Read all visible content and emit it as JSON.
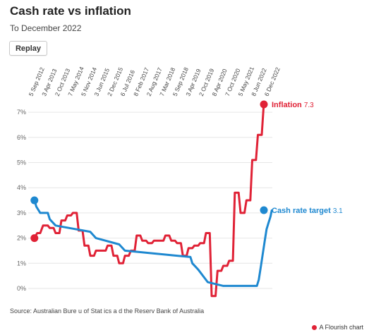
{
  "header": {
    "title": "Cash rate vs inflation",
    "subtitle": "To December 2022",
    "replay_label": "Replay"
  },
  "footer": {
    "source": "Source: Australian Bure  u of Stat  ics a  d the Reserv  Bank of Australia",
    "credit": "A Flourish chart"
  },
  "colors": {
    "inflation": "#e02236",
    "cash_rate": "#1e88d0",
    "grid": "#e6e6e6",
    "text": "#444444"
  },
  "chart_data": {
    "type": "line",
    "title": "Cash rate vs inflation",
    "subtitle": "To December 2022",
    "ylim": [
      0,
      7.5
    ],
    "y_ticks": [
      "0%",
      "1%",
      "2%",
      "3%",
      "4%",
      "5%",
      "6%",
      "7%"
    ],
    "x_range": [
      "2012-08-01",
      "2022-12-15"
    ],
    "x_ticks": [
      "5 Sep 2012",
      "3 Apr 2013",
      "2 Oct 2013",
      "7 May 2014",
      "5 Nov 2014",
      "3 Jun 2015",
      "2 Dec 2015",
      "6 Jul 2016",
      "8 Feb 2017",
      "2 Aug 2017",
      "7 Mar 2018",
      "5 Sep 2018",
      "3 Apr 2019",
      "2 Oct 2019",
      "8 Apr 2020",
      "7 Oct 2020",
      "5 May 2021",
      "8 Jun 2022",
      "6 Dec 2022"
    ],
    "grid": true,
    "series": [
      {
        "name": "Inflation",
        "end_label": "7.3",
        "points": [
          [
            "2012-09-01",
            2.0
          ],
          [
            "2012-10-15",
            2.2
          ],
          [
            "2012-12-01",
            2.2
          ],
          [
            "2013-01-15",
            2.5
          ],
          [
            "2013-04-01",
            2.5
          ],
          [
            "2013-05-01",
            2.4
          ],
          [
            "2013-07-01",
            2.4
          ],
          [
            "2013-08-01",
            2.2
          ],
          [
            "2013-10-01",
            2.2
          ],
          [
            "2013-11-01",
            2.7
          ],
          [
            "2014-01-01",
            2.7
          ],
          [
            "2014-02-01",
            2.9
          ],
          [
            "2014-04-01",
            2.9
          ],
          [
            "2014-05-01",
            3.0
          ],
          [
            "2014-07-01",
            3.0
          ],
          [
            "2014-08-01",
            2.3
          ],
          [
            "2014-10-01",
            2.3
          ],
          [
            "2014-11-01",
            1.7
          ],
          [
            "2015-01-01",
            1.7
          ],
          [
            "2015-02-01",
            1.3
          ],
          [
            "2015-04-01",
            1.3
          ],
          [
            "2015-05-01",
            1.5
          ],
          [
            "2015-07-01",
            1.5
          ],
          [
            "2015-08-01",
            1.5
          ],
          [
            "2015-10-01",
            1.5
          ],
          [
            "2015-11-01",
            1.7
          ],
          [
            "2016-01-01",
            1.7
          ],
          [
            "2016-02-01",
            1.3
          ],
          [
            "2016-04-01",
            1.3
          ],
          [
            "2016-05-01",
            1.0
          ],
          [
            "2016-07-01",
            1.0
          ],
          [
            "2016-08-01",
            1.3
          ],
          [
            "2016-10-01",
            1.3
          ],
          [
            "2016-11-01",
            1.5
          ],
          [
            "2017-01-01",
            1.5
          ],
          [
            "2017-02-01",
            2.1
          ],
          [
            "2017-04-01",
            2.1
          ],
          [
            "2017-05-01",
            1.9
          ],
          [
            "2017-07-01",
            1.9
          ],
          [
            "2017-08-01",
            1.8
          ],
          [
            "2017-10-01",
            1.8
          ],
          [
            "2017-11-01",
            1.9
          ],
          [
            "2018-01-01",
            1.9
          ],
          [
            "2018-02-01",
            1.9
          ],
          [
            "2018-04-01",
            1.9
          ],
          [
            "2018-05-01",
            2.1
          ],
          [
            "2018-07-01",
            2.1
          ],
          [
            "2018-08-01",
            1.9
          ],
          [
            "2018-10-01",
            1.9
          ],
          [
            "2018-11-01",
            1.8
          ],
          [
            "2019-01-01",
            1.8
          ],
          [
            "2019-02-01",
            1.3
          ],
          [
            "2019-04-01",
            1.3
          ],
          [
            "2019-05-01",
            1.6
          ],
          [
            "2019-07-01",
            1.6
          ],
          [
            "2019-08-01",
            1.7
          ],
          [
            "2019-10-01",
            1.7
          ],
          [
            "2019-11-01",
            1.8
          ],
          [
            "2020-01-01",
            1.8
          ],
          [
            "2020-02-01",
            2.2
          ],
          [
            "2020-04-01",
            2.2
          ],
          [
            "2020-05-01",
            -0.3
          ],
          [
            "2020-07-01",
            -0.3
          ],
          [
            "2020-08-01",
            0.7
          ],
          [
            "2020-10-01",
            0.7
          ],
          [
            "2020-11-01",
            0.9
          ],
          [
            "2021-01-01",
            0.9
          ],
          [
            "2021-02-01",
            1.1
          ],
          [
            "2021-04-01",
            1.1
          ],
          [
            "2021-05-01",
            3.8
          ],
          [
            "2021-07-01",
            3.8
          ],
          [
            "2021-08-01",
            3.0
          ],
          [
            "2021-10-01",
            3.0
          ],
          [
            "2021-11-01",
            3.5
          ],
          [
            "2022-01-01",
            3.5
          ],
          [
            "2022-02-01",
            5.1
          ],
          [
            "2022-04-01",
            5.1
          ],
          [
            "2022-05-01",
            6.1
          ],
          [
            "2022-07-01",
            6.1
          ],
          [
            "2022-08-01",
            7.3
          ],
          [
            "2022-09-01",
            7.3
          ]
        ]
      },
      {
        "name": "Cash rate target",
        "end_label": "3.1",
        "points": [
          [
            "2012-09-01",
            3.5
          ],
          [
            "2012-10-01",
            3.25
          ],
          [
            "2012-12-01",
            3.0
          ],
          [
            "2013-04-01",
            3.0
          ],
          [
            "2013-05-01",
            2.75
          ],
          [
            "2013-08-01",
            2.5
          ],
          [
            "2015-02-01",
            2.25
          ],
          [
            "2015-05-01",
            2.0
          ],
          [
            "2016-05-01",
            1.75
          ],
          [
            "2016-08-01",
            1.5
          ],
          [
            "2019-06-01",
            1.25
          ],
          [
            "2019-07-01",
            1.0
          ],
          [
            "2019-10-01",
            0.75
          ],
          [
            "2020-03-01",
            0.25
          ],
          [
            "2020-11-01",
            0.1
          ],
          [
            "2022-04-15",
            0.1
          ],
          [
            "2022-05-15",
            0.35
          ],
          [
            "2022-06-15",
            0.85
          ],
          [
            "2022-07-15",
            1.35
          ],
          [
            "2022-08-15",
            1.85
          ],
          [
            "2022-09-15",
            2.35
          ],
          [
            "2022-10-15",
            2.6
          ],
          [
            "2022-11-15",
            2.85
          ],
          [
            "2022-12-06",
            3.1
          ]
        ]
      }
    ]
  }
}
